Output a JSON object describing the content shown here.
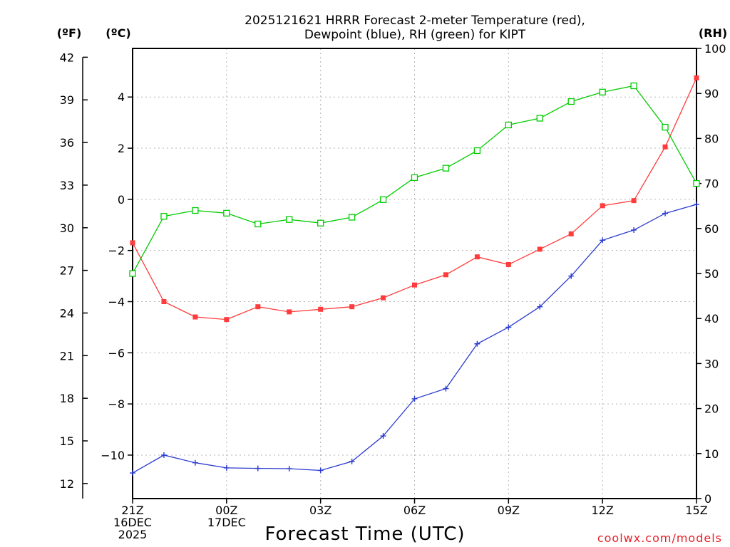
{
  "chart_data": {
    "type": "line",
    "title": [
      "2025121621 HRRR Forecast 2-meter Temperature (red),",
      "Dewpoint (blue), RH (green) for KIPT"
    ],
    "xlabel": "Forecast Time (UTC)",
    "units": {
      "fahrenheit": "(ºF)",
      "celsius": "(ºC)",
      "rh": "(RH)"
    },
    "x_ticks": [
      {
        "hour": 0,
        "lines": [
          "21Z",
          "16DEC",
          "2025"
        ]
      },
      {
        "hour": 3,
        "lines": [
          "00Z",
          "17DEC"
        ]
      },
      {
        "hour": 6,
        "lines": [
          "03Z"
        ]
      },
      {
        "hour": 9,
        "lines": [
          "06Z"
        ]
      },
      {
        "hour": 12,
        "lines": [
          "09Z"
        ]
      },
      {
        "hour": 15,
        "lines": [
          "12Z"
        ]
      },
      {
        "hour": 18,
        "lines": [
          "15Z"
        ]
      }
    ],
    "x_range": [
      0,
      18
    ],
    "celsius_axis": {
      "range": [
        -11.7,
        5.9
      ],
      "ticks": [
        "-10",
        "-8",
        "-6",
        "-4",
        "-2",
        "0",
        "2",
        "4"
      ]
    },
    "fahrenheit_axis": {
      "ticks": [
        "12",
        "15",
        "18",
        "21",
        "24",
        "27",
        "30",
        "33",
        "36",
        "39",
        "42"
      ]
    },
    "rh_axis": {
      "range": [
        0,
        100
      ],
      "ticks": [
        "0",
        "10",
        "20",
        "30",
        "40",
        "50",
        "60",
        "70",
        "80",
        "90",
        "100"
      ]
    },
    "grid": true,
    "series": [
      {
        "name": "Temperature",
        "axis": "celsius",
        "color": "#ff3b3b",
        "marker": "filled-square",
        "values": [
          -1.7,
          -4.0,
          -4.6,
          -4.7,
          -4.2,
          -4.4,
          -4.3,
          -4.2,
          -3.85,
          -3.35,
          -2.95,
          -2.25,
          -2.55,
          -1.95,
          -1.35,
          -0.25,
          -0.05,
          2.05,
          4.75
        ]
      },
      {
        "name": "Dewpoint",
        "axis": "celsius",
        "color": "#2b3bd0",
        "marker": "plus",
        "values": [
          -10.7,
          -10.0,
          -10.3,
          -10.5,
          -10.52,
          -10.53,
          -10.6,
          -10.25,
          -9.25,
          -7.8,
          -7.4,
          -5.65,
          -5.0,
          -4.2,
          -3.0,
          -1.6,
          -1.2,
          -0.55,
          -0.2
        ]
      },
      {
        "name": "RH",
        "axis": "rh",
        "color": "#00cc00",
        "marker": "open-square",
        "values": [
          50.0,
          62.7,
          64.0,
          63.4,
          61.0,
          62.0,
          61.2,
          62.5,
          66.4,
          71.3,
          73.4,
          77.3,
          83.0,
          84.5,
          88.2,
          90.3,
          91.7,
          82.5,
          70.0
        ]
      }
    ]
  },
  "footer": {
    "credit": "coolwx.com/models"
  }
}
